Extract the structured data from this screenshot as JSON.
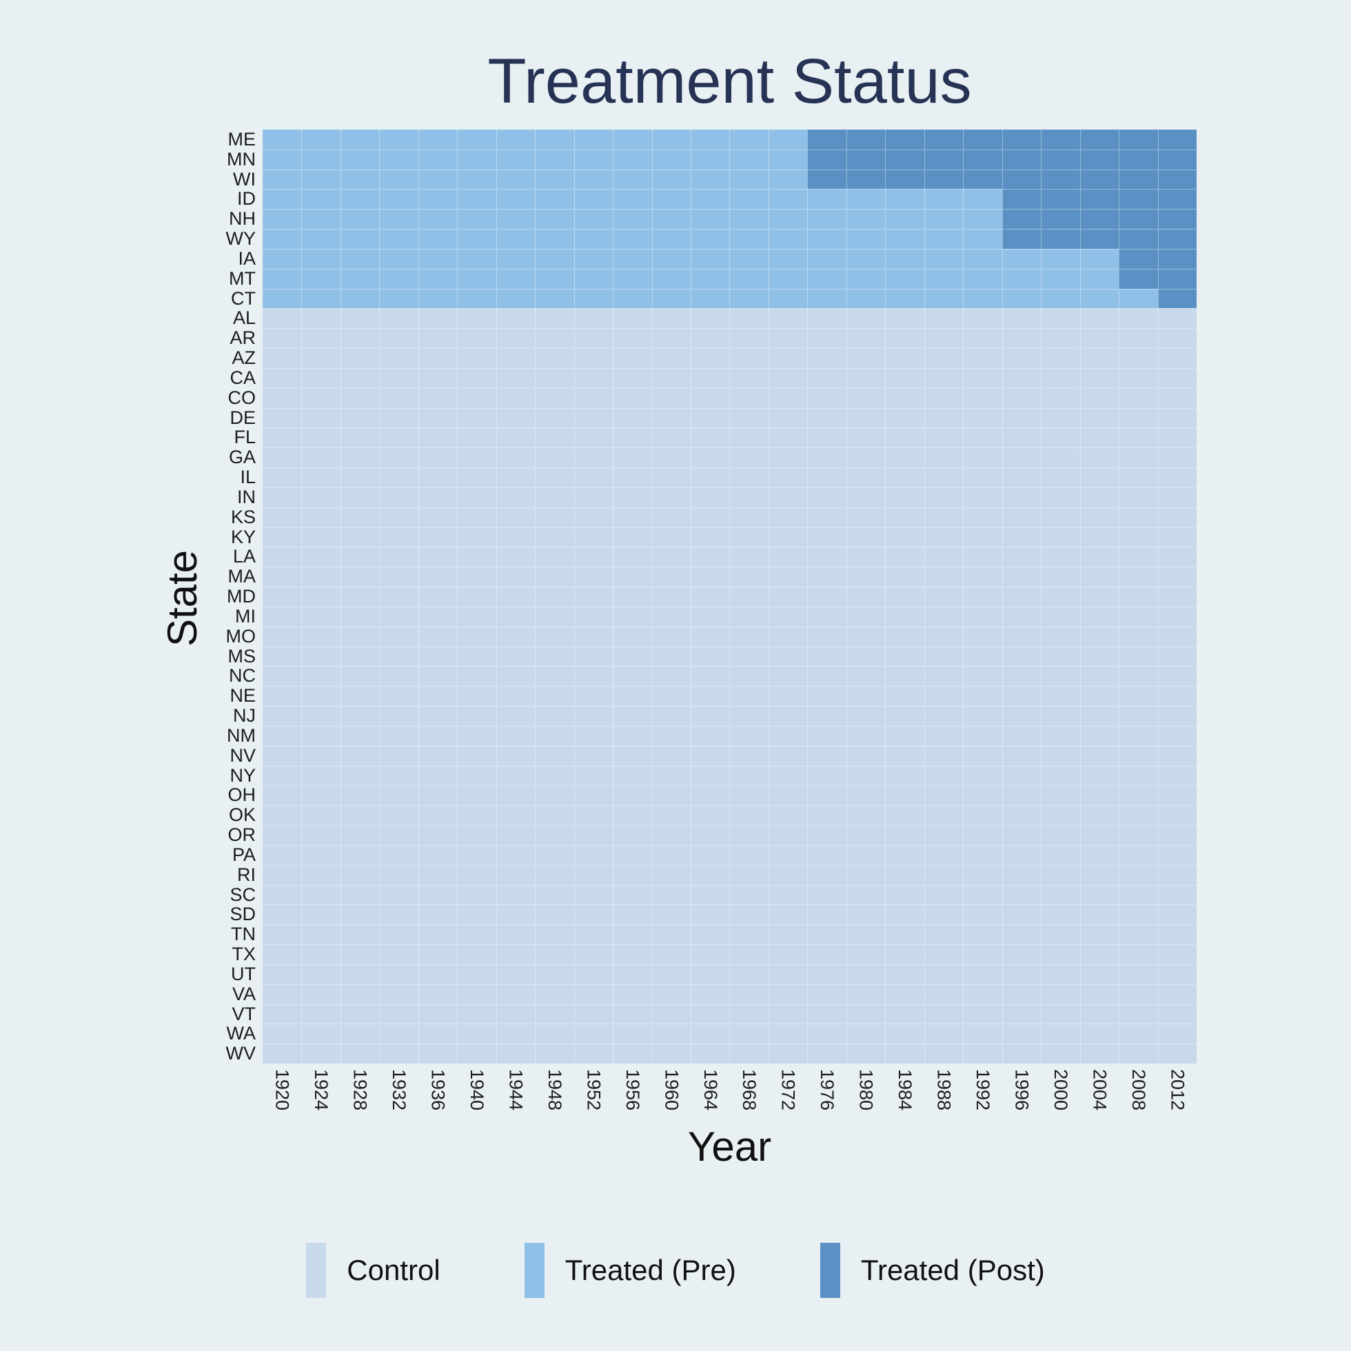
{
  "title": "Treatment Status",
  "chart_data": {
    "type": "heatmap",
    "title": "Treatment Status",
    "xlabel": "Year",
    "ylabel": "State",
    "x_years": [
      1920,
      1924,
      1928,
      1932,
      1936,
      1940,
      1944,
      1948,
      1952,
      1956,
      1960,
      1964,
      1968,
      1972,
      1976,
      1980,
      1984,
      1988,
      1992,
      1996,
      2000,
      2004,
      2008,
      2012
    ],
    "x_range_note": "columns are 4-year periods from 1920 to 2012, every column labeled",
    "rows": [
      {
        "state": "ME",
        "post_start": 1976
      },
      {
        "state": "MN",
        "post_start": 1976
      },
      {
        "state": "WI",
        "post_start": 1976
      },
      {
        "state": "ID",
        "post_start": 1996
      },
      {
        "state": "NH",
        "post_start": 1996
      },
      {
        "state": "WY",
        "post_start": 1996
      },
      {
        "state": "IA",
        "post_start": 2008
      },
      {
        "state": "MT",
        "post_start": 2008
      },
      {
        "state": "CT",
        "post_start": 2012
      },
      {
        "state": "AL",
        "post_start": null
      },
      {
        "state": "AR",
        "post_start": null
      },
      {
        "state": "AZ",
        "post_start": null
      },
      {
        "state": "CA",
        "post_start": null
      },
      {
        "state": "CO",
        "post_start": null
      },
      {
        "state": "DE",
        "post_start": null
      },
      {
        "state": "FL",
        "post_start": null
      },
      {
        "state": "GA",
        "post_start": null
      },
      {
        "state": "IL",
        "post_start": null
      },
      {
        "state": "IN",
        "post_start": null
      },
      {
        "state": "KS",
        "post_start": null
      },
      {
        "state": "KY",
        "post_start": null
      },
      {
        "state": "LA",
        "post_start": null
      },
      {
        "state": "MA",
        "post_start": null
      },
      {
        "state": "MD",
        "post_start": null
      },
      {
        "state": "MI",
        "post_start": null
      },
      {
        "state": "MO",
        "post_start": null
      },
      {
        "state": "MS",
        "post_start": null
      },
      {
        "state": "NC",
        "post_start": null
      },
      {
        "state": "NE",
        "post_start": null
      },
      {
        "state": "NJ",
        "post_start": null
      },
      {
        "state": "NM",
        "post_start": null
      },
      {
        "state": "NV",
        "post_start": null
      },
      {
        "state": "NY",
        "post_start": null
      },
      {
        "state": "OH",
        "post_start": null
      },
      {
        "state": "OK",
        "post_start": null
      },
      {
        "state": "OR",
        "post_start": null
      },
      {
        "state": "PA",
        "post_start": null
      },
      {
        "state": "RI",
        "post_start": null
      },
      {
        "state": "SC",
        "post_start": null
      },
      {
        "state": "SD",
        "post_start": null
      },
      {
        "state": "TN",
        "post_start": null
      },
      {
        "state": "TX",
        "post_start": null
      },
      {
        "state": "UT",
        "post_start": null
      },
      {
        "state": "VA",
        "post_start": null
      },
      {
        "state": "VT",
        "post_start": null
      },
      {
        "state": "WA",
        "post_start": null
      },
      {
        "state": "WV",
        "post_start": null
      }
    ],
    "legend": [
      {
        "key": "control",
        "label": "Control",
        "color": "#c9d9ec"
      },
      {
        "key": "pre",
        "label": "Treated (Pre)",
        "color": "#8fc0e7"
      },
      {
        "key": "post",
        "label": "Treated (Post)",
        "color": "#5a90c4"
      }
    ],
    "colors": {
      "background": "#e9f0f3",
      "gridline": "rgba(255,255,255,0.38)",
      "title_text": "#273355",
      "axis_text": "#1c1c1c"
    },
    "legend_position": "bottom",
    "grid": true
  }
}
